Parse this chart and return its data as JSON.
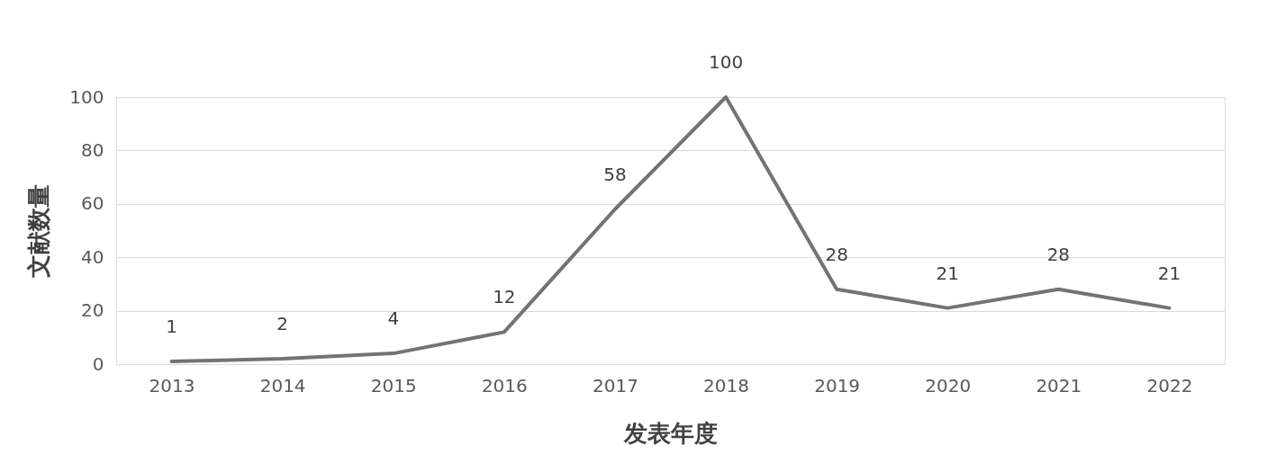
{
  "chart_data": {
    "type": "line",
    "xlabel": "发表年度",
    "ylabel": "文献数量",
    "categories": [
      "2013",
      "2014",
      "2015",
      "2016",
      "2017",
      "2018",
      "2019",
      "2020",
      "2021",
      "2022"
    ],
    "series": [
      {
        "color": "#737373",
        "values": [
          1,
          2,
          4,
          12,
          58,
          100,
          28,
          21,
          28,
          21
        ]
      }
    ],
    "ylim": [
      0,
      100
    ],
    "yticks": [
      0,
      20,
      40,
      60,
      80,
      100
    ],
    "grid": "y",
    "data_labels": true,
    "marker": "none",
    "line_style": "solid"
  }
}
